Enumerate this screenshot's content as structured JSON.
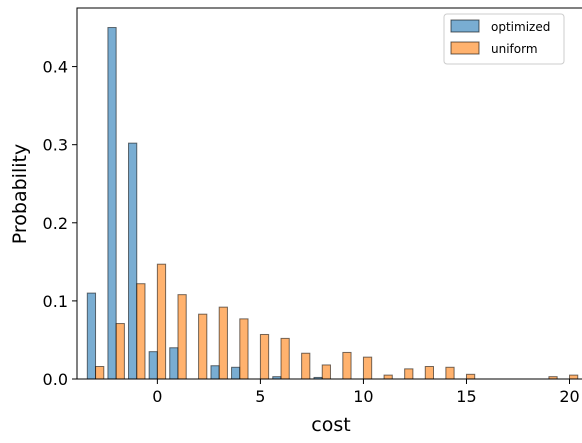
{
  "chart_data": {
    "type": "bar",
    "xlabel": "cost",
    "ylabel": "Probability",
    "xlim": [
      -3.9,
      20.8
    ],
    "ylim": [
      0,
      0.475
    ],
    "xticks": [
      0,
      5,
      10,
      15,
      20
    ],
    "yticks": [
      0.0,
      0.1,
      0.2,
      0.3,
      0.4
    ],
    "ytick_labels": [
      "0.0",
      "0.1",
      "0.2",
      "0.3",
      "0.4"
    ],
    "grid": false,
    "legend_position": "top-right",
    "series": [
      {
        "name": "optimized",
        "color": "#1f77b4",
        "x": [
          -3,
          -2,
          -1,
          0,
          1,
          3,
          4,
          6,
          8
        ],
        "values": [
          0.11,
          0.45,
          0.302,
          0.035,
          0.04,
          0.017,
          0.015,
          0.003,
          0.002
        ]
      },
      {
        "name": "uniform",
        "color": "#ff7f0e",
        "x": [
          -3,
          -2,
          -1,
          0,
          1,
          2,
          3,
          4,
          5,
          6,
          7,
          8,
          9,
          10,
          11,
          12,
          13,
          14,
          15,
          19,
          20
        ],
        "values": [
          0.016,
          0.071,
          0.122,
          0.147,
          0.108,
          0.083,
          0.092,
          0.077,
          0.057,
          0.052,
          0.033,
          0.018,
          0.034,
          0.028,
          0.005,
          0.013,
          0.016,
          0.015,
          0.006,
          0.003,
          0.005
        ]
      }
    ]
  }
}
